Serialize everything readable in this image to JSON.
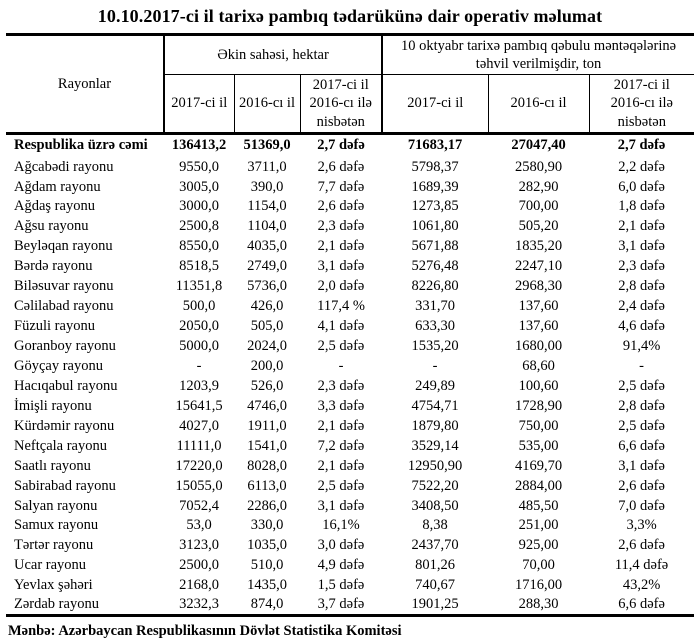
{
  "title": "10.10.2017-ci il tarixə pambıq tədarükünə dair operativ məlumat",
  "table": {
    "col_rayonlar": "Rayonlar",
    "group_ekin": "Əkin sahəsi, hektar",
    "group_tehvil": "10 oktyabr tarixə pambıq qəbulu məntəqələrinə təhvil verilmişdir, ton",
    "sub_cols": [
      "2017-ci il",
      "2016-cı il",
      "2017-ci il 2016-cı ilə nisbətən",
      "2017-ci il",
      "2016-cı il",
      "2017-ci il 2016-cı ilə nisbətən"
    ],
    "rows": [
      {
        "name": "Respublika üzrə cəmi",
        "bold": true,
        "values": [
          "136413,2",
          "51369,0",
          "2,7 dəfə",
          "71683,17",
          "27047,40",
          "2,7 dəfə"
        ]
      },
      {
        "name": "Ağcabədi rayonu",
        "values": [
          "9550,0",
          "3711,0",
          "2,6 dəfə",
          "5798,37",
          "2580,90",
          "2,2 dəfə"
        ]
      },
      {
        "name": "Ağdam rayonu",
        "values": [
          "3005,0",
          "390,0",
          "7,7 dəfə",
          "1689,39",
          "282,90",
          "6,0 dəfə"
        ]
      },
      {
        "name": "Ağdaş rayonu",
        "values": [
          "3000,0",
          "1154,0",
          "2,6 dəfə",
          "1273,85",
          "700,00",
          "1,8 dəfə"
        ]
      },
      {
        "name": "Ağsu rayonu",
        "values": [
          "2500,8",
          "1104,0",
          "2,3 dəfə",
          "1061,80",
          "505,20",
          "2,1 dəfə"
        ]
      },
      {
        "name": "Beyləqan rayonu",
        "values": [
          "8550,0",
          "4035,0",
          "2,1 dəfə",
          "5671,88",
          "1835,20",
          "3,1 dəfə"
        ]
      },
      {
        "name": "Bərdə rayonu",
        "values": [
          "8518,5",
          "2749,0",
          "3,1 dəfə",
          "5276,48",
          "2247,10",
          "2,3 dəfə"
        ]
      },
      {
        "name": "Biləsuvar rayonu",
        "values": [
          "11351,8",
          "5736,0",
          "2,0 dəfə",
          "8226,80",
          "2968,30",
          "2,8 dəfə"
        ]
      },
      {
        "name": "Cəlilabad rayonu",
        "values": [
          "500,0",
          "426,0",
          "117,4 %",
          "331,70",
          "137,60",
          "2,4 dəfə"
        ]
      },
      {
        "name": "Füzuli rayonu",
        "values": [
          "2050,0",
          "505,0",
          "4,1 dəfə",
          "633,30",
          "137,60",
          "4,6 dəfə"
        ]
      },
      {
        "name": "Goranboy rayonu",
        "values": [
          "5000,0",
          "2024,0",
          "2,5 dəfə",
          "1535,20",
          "1680,00",
          "91,4%"
        ]
      },
      {
        "name": "Göyçay rayonu",
        "values": [
          "-",
          "200,0",
          "-",
          "-",
          "68,60",
          "-"
        ]
      },
      {
        "name": "Hacıqabul rayonu",
        "values": [
          "1203,9",
          "526,0",
          "2,3 dəfə",
          "249,89",
          "100,60",
          "2,5 dəfə"
        ]
      },
      {
        "name": "İmişli rayonu",
        "values": [
          "15641,5",
          "4746,0",
          "3,3 dəfə",
          "4754,71",
          "1728,90",
          "2,8 dəfə"
        ]
      },
      {
        "name": "Kürdəmir rayonu",
        "values": [
          "4027,0",
          "1911,0",
          "2,1 dəfə",
          "1879,80",
          "750,00",
          "2,5 dəfə"
        ]
      },
      {
        "name": "Neftçala rayonu",
        "values": [
          "11111,0",
          "1541,0",
          "7,2 dəfə",
          "3529,14",
          "535,00",
          "6,6 dəfə"
        ]
      },
      {
        "name": "Saatlı rayonu",
        "values": [
          "17220,0",
          "8028,0",
          "2,1 dəfə",
          "12950,90",
          "4169,70",
          "3,1 dəfə"
        ]
      },
      {
        "name": "Sabirabad rayonu",
        "values": [
          "15055,0",
          "6113,0",
          "2,5 dəfə",
          "7522,20",
          "2884,00",
          "2,6 dəfə"
        ]
      },
      {
        "name": "Salyan rayonu",
        "values": [
          "7052,4",
          "2286,0",
          "3,1 dəfə",
          "3408,50",
          "485,50",
          "7,0 dəfə"
        ]
      },
      {
        "name": "Samux rayonu",
        "values": [
          "53,0",
          "330,0",
          "16,1%",
          "8,38",
          "251,00",
          "3,3%"
        ]
      },
      {
        "name": "Tərtər rayonu",
        "values": [
          "3123,0",
          "1035,0",
          "3,0 dəfə",
          "2437,70",
          "925,00",
          "2,6 dəfə"
        ]
      },
      {
        "name": "Ucar rayonu",
        "values": [
          "2500,0",
          "510,0",
          "4,9 dəfə",
          "801,26",
          "70,00",
          "11,4 dəfə"
        ]
      },
      {
        "name": "Yevlax şəhəri",
        "values": [
          "2168,0",
          "1435,0",
          "1,5 dəfə",
          "740,67",
          "1716,00",
          "43,2%"
        ]
      },
      {
        "name": "Zərdab rayonu",
        "values": [
          "3232,3",
          "874,0",
          "3,7 dəfə",
          "1901,25",
          "288,30",
          "6,6 dəfə"
        ]
      }
    ]
  },
  "footer": "Mənbə: Azərbaycan Respublikasının Dövlət Statistika Komitəsi"
}
